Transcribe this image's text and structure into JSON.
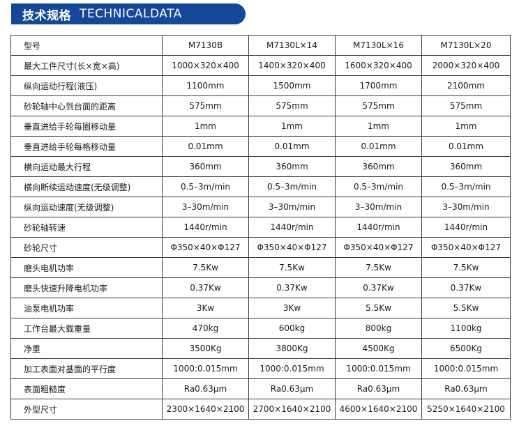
{
  "title": {
    "cn": "技术规格",
    "en": "TECHNICALDATA"
  },
  "table": {
    "rows": [
      [
        "型号",
        "M7130B",
        "M7130L×14",
        "M7130L×16",
        "M7130L×20"
      ],
      [
        "最大工件尺寸(长×宽×高)",
        "1000×320×400",
        "1400×320×400",
        "1600×320×400",
        "2000×320×400"
      ],
      [
        "纵向运动行程(液压)",
        "1100mm",
        "1500mm",
        "1700mm",
        "2100mm"
      ],
      [
        "砂轮轴中心到台面的距离",
        "575mm",
        "575mm",
        "575mm",
        "575mm"
      ],
      [
        "垂直进给手轮每圈移动量",
        "1mm",
        "1mm",
        "1mm",
        "1mm"
      ],
      [
        "垂直进给手轮每格移动量",
        "0.01mm",
        "0.01mm",
        "0.01mm",
        "0.01mm"
      ],
      [
        "横向运动最大行程",
        "360mm",
        "360mm",
        "360mm",
        "360mm"
      ],
      [
        "横向断续运动速度(无级调整)",
        "0.5–3m/min",
        "0.5–3m/min",
        "0.5–3m/min",
        "0.5–3m/min"
      ],
      [
        "纵向运动速度(无级调整)",
        "3–30m/min",
        "3–30m/min",
        "3–30m/min",
        "3–30m/min"
      ],
      [
        "砂轮轴转速",
        "1440r/min",
        "1440r/min",
        "1440r/min",
        "1440r/min"
      ],
      [
        "砂轮尺寸",
        "Φ350×40×Φ127",
        "Φ350×40×Φ127",
        "Φ350×40×Φ127",
        "Φ350×40×Φ127"
      ],
      [
        "磨头电机功率",
        "7.5Kw",
        "7.5Kw",
        "7.5Kw",
        "7.5Kw"
      ],
      [
        "磨头快速升降电机功率",
        "0.37Kw",
        "0.37Kw",
        "0.37Kw",
        "0.37Kw"
      ],
      [
        "油泵电机功率",
        "3Kw",
        "3Kw",
        "5.5Kw",
        "5.5Kw"
      ],
      [
        "工作台最大载重量",
        "470kg",
        "600kg",
        "800kg",
        "1100kg"
      ],
      [
        "净重",
        "3500Kg",
        "3800Kg",
        "4500Kg",
        "6500Kg"
      ],
      [
        "加工表面对基面的平行度",
        "1000:0.015mm",
        "1000:0.015mm",
        "1000:0.015mm",
        "1000:0.015mm"
      ],
      [
        "表面粗糙度",
        "Ra0.63μm",
        "Ra0.63μm",
        "Ra0.63μm",
        "Ra0.63μm"
      ],
      [
        "外型尺寸",
        "2300×1640×2100",
        "2700×1640×2100",
        "4600×1640×2100",
        "5250×1640×2100"
      ]
    ]
  },
  "colors": {
    "title_bg": "#16489a",
    "title_text": "#ffffff",
    "border": "#3a3a3a"
  }
}
